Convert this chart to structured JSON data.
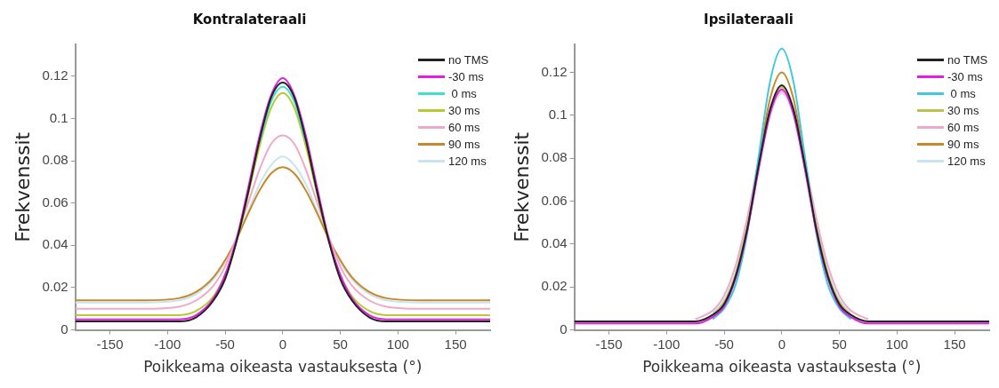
{
  "chart_data": [
    {
      "type": "line",
      "title": "Kontralateraali",
      "xlabel": "Poikkeama oikeasta vastauksesta (°)",
      "ylabel": "Frekvenssit",
      "x": [
        -180,
        -120,
        -90,
        -75,
        -60,
        -50,
        -40,
        -30,
        -20,
        -10,
        0,
        10,
        20,
        30,
        40,
        50,
        60,
        75,
        90,
        120,
        180
      ],
      "xlim": [
        -180,
        180
      ],
      "xticks": [
        -150,
        -100,
        -50,
        0,
        50,
        100,
        150
      ],
      "ylim": [
        0,
        0.135
      ],
      "yticks": [
        0,
        0.02,
        0.04,
        0.06,
        0.08,
        0.1,
        0.12
      ],
      "grid": false,
      "legend": "top right",
      "marker": "none",
      "line_style": "solid",
      "series": [
        {
          "name": "no TMS",
          "color": "#222222",
          "values": [
            0.004,
            0.004,
            0.004,
            0.006,
            0.014,
            0.024,
            0.042,
            0.065,
            0.09,
            0.11,
            0.117,
            0.11,
            0.09,
            0.065,
            0.042,
            0.024,
            0.014,
            0.006,
            0.004,
            0.004,
            0.004
          ]
        },
        {
          "name": "-30 ms",
          "color": "#e020e0",
          "values": [
            0.005,
            0.005,
            0.005,
            0.007,
            0.015,
            0.026,
            0.043,
            0.067,
            0.092,
            0.111,
            0.119,
            0.111,
            0.092,
            0.067,
            0.043,
            0.026,
            0.015,
            0.007,
            0.005,
            0.005,
            0.005
          ]
        },
        {
          "name": " 0 ms",
          "color": "#40e0d0",
          "values": [
            null,
            null,
            null,
            null,
            null,
            null,
            null,
            null,
            0.089,
            0.108,
            0.115,
            0.108,
            0.089,
            null,
            null,
            null,
            null,
            null,
            null,
            null,
            null
          ]
        },
        {
          "name": "30 ms",
          "color": "#b8c830",
          "values": [
            0.007,
            0.007,
            0.007,
            0.009,
            0.016,
            0.026,
            0.042,
            0.064,
            0.087,
            0.105,
            0.112,
            0.105,
            0.087,
            0.064,
            0.042,
            0.026,
            0.016,
            0.009,
            0.007,
            0.007,
            0.007
          ]
        },
        {
          "name": "60 ms",
          "color": "#f0a8c8",
          "values": [
            0.01,
            0.01,
            0.011,
            0.014,
            0.021,
            0.03,
            0.044,
            0.06,
            0.076,
            0.088,
            0.092,
            0.088,
            0.076,
            0.06,
            0.044,
            0.03,
            0.021,
            0.014,
            0.011,
            0.01,
            0.01
          ]
        },
        {
          "name": "90 ms",
          "color": "#c8882a",
          "values": [
            0.014,
            0.014,
            0.015,
            0.018,
            0.025,
            0.033,
            0.043,
            0.055,
            0.066,
            0.074,
            0.077,
            0.074,
            0.066,
            0.055,
            0.043,
            0.033,
            0.025,
            0.018,
            0.015,
            0.014,
            0.014
          ]
        },
        {
          "name": "120 ms",
          "color": "#c8e4f0",
          "values": [
            0.013,
            0.013,
            0.014,
            0.017,
            0.024,
            0.032,
            0.043,
            0.056,
            0.069,
            0.078,
            0.082,
            0.078,
            0.069,
            0.056,
            0.043,
            0.032,
            0.024,
            0.017,
            0.014,
            0.013,
            0.013
          ]
        }
      ]
    },
    {
      "type": "line",
      "title": "Ipsilateraali",
      "xlabel": "Poikkeama oikeasta vastauksesta (°)",
      "ylabel": "Frekvenssit",
      "x": [
        -180,
        -120,
        -90,
        -75,
        -60,
        -50,
        -40,
        -30,
        -20,
        -10,
        0,
        10,
        20,
        30,
        40,
        50,
        60,
        75,
        90,
        120,
        180
      ],
      "xlim": [
        -180,
        180
      ],
      "xticks": [
        -150,
        -100,
        -50,
        0,
        50,
        100,
        150
      ],
      "ylim": [
        0,
        0.133
      ],
      "yticks": [
        0,
        0.02,
        0.04,
        0.06,
        0.08,
        0.1,
        0.12
      ],
      "grid": false,
      "legend": "top right",
      "marker": "none",
      "line_style": "solid",
      "series": [
        {
          "name": "no TMS",
          "color": "#222222",
          "values": [
            0.004,
            0.004,
            0.004,
            0.004,
            0.007,
            0.012,
            0.025,
            0.047,
            0.077,
            0.103,
            0.114,
            0.103,
            0.077,
            0.047,
            0.025,
            0.012,
            0.007,
            0.004,
            0.004,
            0.004,
            0.004
          ]
        },
        {
          "name": "-30 ms",
          "color": "#e020e0",
          "values": [
            0.003,
            0.003,
            0.003,
            0.003,
            0.006,
            0.011,
            0.024,
            0.046,
            0.075,
            0.101,
            0.112,
            0.101,
            0.075,
            0.046,
            0.024,
            0.011,
            0.006,
            0.003,
            0.003,
            0.003,
            0.003
          ]
        },
        {
          "name": " 0 ms",
          "color": "#40c8e0",
          "values": [
            null,
            null,
            null,
            null,
            0.005,
            0.01,
            0.021,
            0.045,
            0.081,
            0.116,
            0.131,
            0.116,
            0.081,
            0.045,
            0.021,
            0.01,
            0.005,
            null,
            null,
            null,
            null
          ]
        },
        {
          "name": "30 ms",
          "color": "#c0c050",
          "values": [
            null,
            null,
            null,
            null,
            0.007,
            0.013,
            0.026,
            0.048,
            null,
            0.102,
            0.113,
            0.102,
            null,
            0.048,
            0.026,
            0.013,
            0.007,
            null,
            null,
            null,
            null
          ]
        },
        {
          "name": "60 ms",
          "color": "#f0a8c8",
          "values": [
            null,
            null,
            null,
            0.005,
            0.009,
            0.016,
            0.03,
            0.052,
            0.079,
            0.102,
            0.111,
            0.102,
            0.079,
            0.052,
            0.03,
            0.016,
            0.009,
            0.005,
            null,
            null,
            null
          ]
        },
        {
          "name": "90 ms",
          "color": "#c8882a",
          "values": [
            null,
            null,
            null,
            null,
            null,
            null,
            null,
            null,
            0.079,
            0.108,
            0.12,
            0.108,
            0.079,
            null,
            null,
            null,
            null,
            null,
            null,
            null,
            null
          ]
        },
        {
          "name": "120 ms",
          "color": "#c8e4f0",
          "values": [
            null,
            null,
            null,
            null,
            0.008,
            0.014,
            0.027,
            0.049,
            0.076,
            0.1,
            0.11,
            0.1,
            0.076,
            0.049,
            0.027,
            0.014,
            0.008,
            null,
            null,
            null,
            null
          ]
        }
      ]
    }
  ]
}
